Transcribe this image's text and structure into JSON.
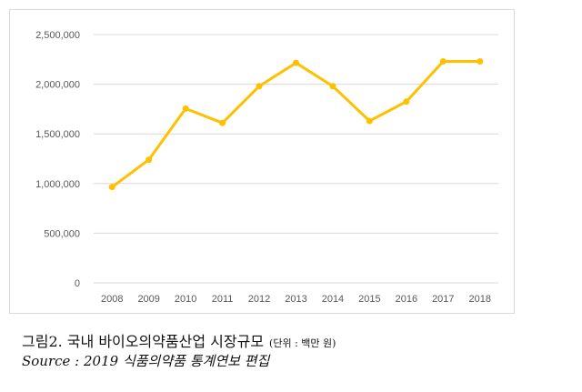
{
  "chart_data": {
    "type": "line",
    "x": [
      "2008",
      "2009",
      "2010",
      "2011",
      "2012",
      "2013",
      "2014",
      "2015",
      "2016",
      "2017",
      "2018"
    ],
    "series": [
      {
        "values": [
          965000,
          1240000,
          1755000,
          1610000,
          1980000,
          2215000,
          1980000,
          1630000,
          1825000,
          2230000,
          2230000
        ]
      }
    ],
    "yticks": [
      "0",
      "500,000",
      "1,000,000",
      "1,500,000",
      "2,000,000",
      "2,500,000"
    ],
    "ylim": [
      0,
      2500000
    ],
    "grid": true,
    "line_color": "#FFC000",
    "title": "",
    "xlabel": "",
    "ylabel": ""
  },
  "caption": {
    "title": "그림2. 국내 바이오의약품산업 시장규모",
    "unit": "(단위 : 백만 원)",
    "source": "Source : 2019 식품의약품 통계연보 편집"
  }
}
